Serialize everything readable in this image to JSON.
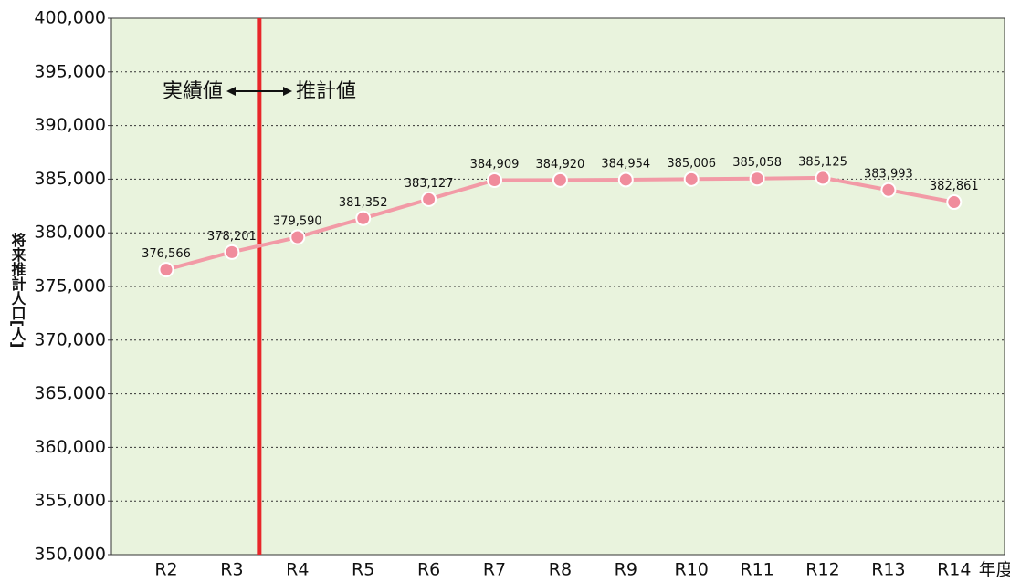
{
  "chart_data": {
    "type": "line",
    "y_label": "将来推計人口[人]",
    "x_label": "年度",
    "annotations": [
      "実績値",
      "推計値"
    ],
    "categories": [
      "R2",
      "R3",
      "R4",
      "R5",
      "R6",
      "R7",
      "R8",
      "R9",
      "R10",
      "R11",
      "R12",
      "R13",
      "R14"
    ],
    "series": [
      {
        "name": "将来推計人口",
        "color": "#f29aa6",
        "values": [
          376566,
          378201,
          379590,
          381352,
          383127,
          384909,
          384920,
          384954,
          385006,
          385058,
          385125,
          383993,
          382861
        ],
        "value_labels": [
          "376,566",
          "378,201",
          "379,590",
          "381,352",
          "383,127",
          "384,909",
          "384,920",
          "384,954",
          "385,006",
          "385,058",
          "385,125",
          "383,993",
          "382,861"
        ]
      }
    ],
    "ylim": [
      350000,
      400000
    ],
    "yticks": [
      {
        "value": 350000,
        "label": "350,000"
      },
      {
        "value": 355000,
        "label": "355,000"
      },
      {
        "value": 360000,
        "label": "360,000"
      },
      {
        "value": 365000,
        "label": "365,000"
      },
      {
        "value": 370000,
        "label": "370,000"
      },
      {
        "value": 375000,
        "label": "375,000"
      },
      {
        "value": 380000,
        "label": "380,000"
      },
      {
        "value": 385000,
        "label": "385,000"
      },
      {
        "value": 390000,
        "label": "390,000"
      },
      {
        "value": 395000,
        "label": "395,000"
      },
      {
        "value": 400000,
        "label": "400,000"
      }
    ],
    "grid": true,
    "background": "#e9f3dd",
    "divider_color": "#e8262a"
  }
}
